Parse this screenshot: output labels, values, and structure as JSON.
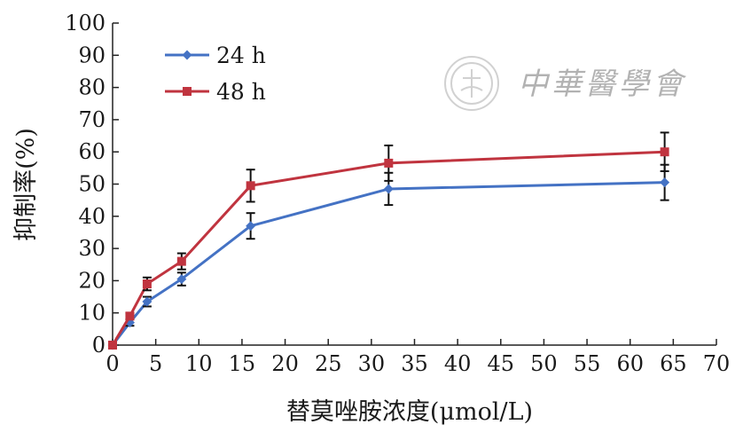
{
  "chart_data": {
    "type": "line",
    "xlabel": "替莫唑胺浓度(μmol/L)",
    "ylabel": "抑制率(%)",
    "xlim": [
      0,
      70
    ],
    "ylim": [
      0,
      100
    ],
    "x_ticks": [
      0,
      5,
      10,
      15,
      20,
      25,
      30,
      35,
      40,
      45,
      50,
      55,
      60,
      65,
      70
    ],
    "y_ticks": [
      0,
      10,
      20,
      30,
      40,
      50,
      60,
      70,
      80,
      90,
      100
    ],
    "grid": false,
    "legend_position": "top-left",
    "series": [
      {
        "name": "24 h",
        "color": "#4472c4",
        "marker": "diamond",
        "x": [
          0,
          2,
          4,
          8,
          16,
          32,
          64
        ],
        "y": [
          0,
          7,
          13.5,
          20.5,
          37,
          48.5,
          50.5
        ],
        "error": [
          0,
          1,
          1.5,
          2,
          4,
          5,
          5.5
        ]
      },
      {
        "name": "48 h",
        "color": "#c0343f",
        "marker": "square",
        "x": [
          0,
          2,
          4,
          8,
          16,
          32,
          64
        ],
        "y": [
          0,
          9,
          19,
          26,
          49.5,
          56.5,
          60
        ],
        "error": [
          0,
          1,
          2,
          2.5,
          5,
          5.5,
          6
        ]
      }
    ]
  },
  "watermark": {
    "text": "中華醫學會",
    "seal": "seal-icon"
  }
}
